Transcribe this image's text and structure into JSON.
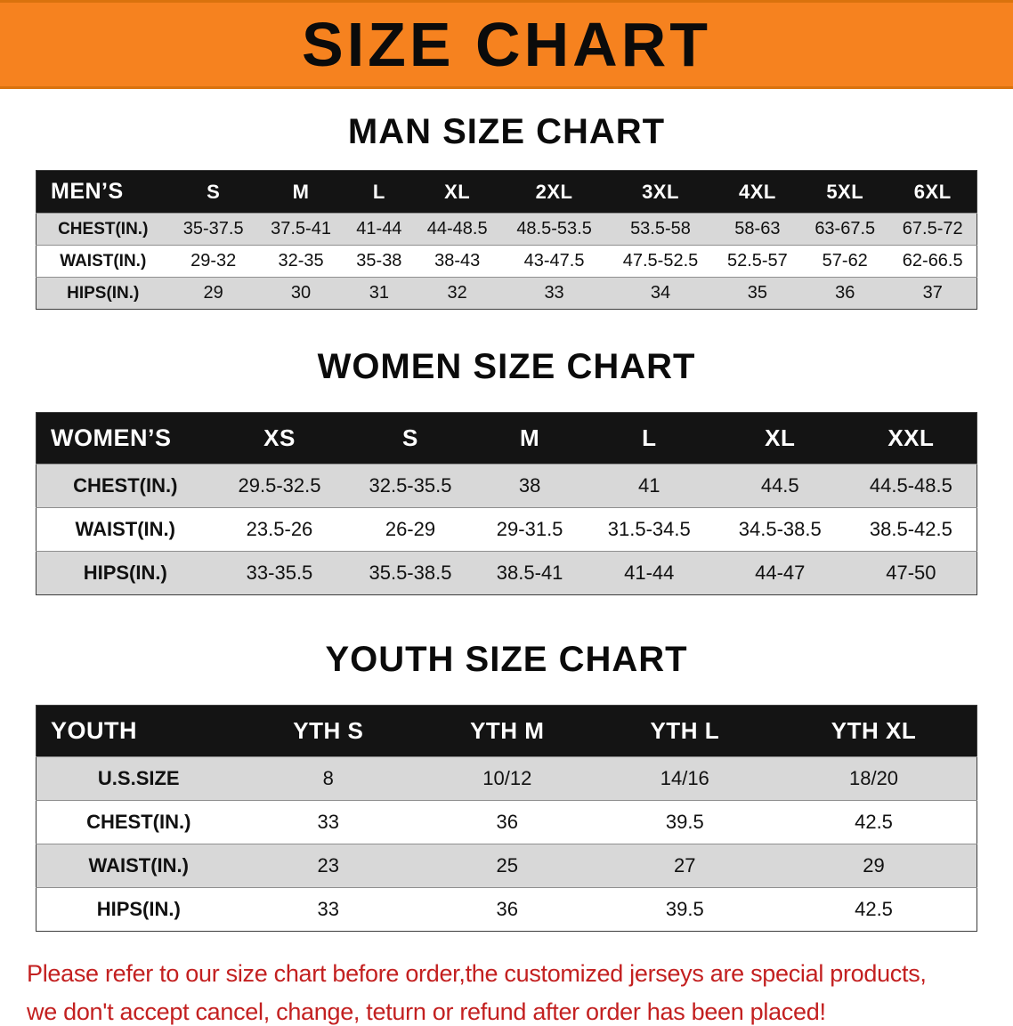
{
  "banner": {
    "title": "SIZE CHART"
  },
  "chart_data": [
    {
      "type": "table",
      "title": "MAN SIZE CHART",
      "columns": [
        "MEN’S",
        "S",
        "M",
        "L",
        "XL",
        "2XL",
        "3XL",
        "4XL",
        "5XL",
        "6XL"
      ],
      "rows": [
        [
          "CHEST(IN.)",
          "35-37.5",
          "37.5-41",
          "41-44",
          "44-48.5",
          "48.5-53.5",
          "53.5-58",
          "58-63",
          "63-67.5",
          "67.5-72"
        ],
        [
          "WAIST(IN.)",
          "29-32",
          "32-35",
          "35-38",
          "38-43",
          "43-47.5",
          "47.5-52.5",
          "52.5-57",
          "57-62",
          "62-66.5"
        ],
        [
          "HIPS(IN.)",
          "29",
          "30",
          "31",
          "32",
          "33",
          "34",
          "35",
          "36",
          "37"
        ]
      ]
    },
    {
      "type": "table",
      "title": "WOMEN SIZE CHART",
      "columns": [
        "WOMEN’S",
        "XS",
        "S",
        "M",
        "L",
        "XL",
        "XXL"
      ],
      "rows": [
        [
          "CHEST(IN.)",
          "29.5-32.5",
          "32.5-35.5",
          "38",
          "41",
          "44.5",
          "44.5-48.5"
        ],
        [
          "WAIST(IN.)",
          "23.5-26",
          "26-29",
          "29-31.5",
          "31.5-34.5",
          "34.5-38.5",
          "38.5-42.5"
        ],
        [
          "HIPS(IN.)",
          "33-35.5",
          "35.5-38.5",
          "38.5-41",
          "41-44",
          "44-47",
          "47-50"
        ]
      ]
    },
    {
      "type": "table",
      "title": "YOUTH SIZE CHART",
      "columns": [
        "YOUTH",
        "YTH S",
        "YTH M",
        "YTH L",
        "YTH XL"
      ],
      "rows": [
        [
          "U.S.SIZE",
          "8",
          "10/12",
          "14/16",
          "18/20"
        ],
        [
          "CHEST(IN.)",
          "33",
          "36",
          "39.5",
          "42.5"
        ],
        [
          "WAIST(IN.)",
          "23",
          "25",
          "27",
          "29"
        ],
        [
          "HIPS(IN.)",
          "33",
          "36",
          "39.5",
          "42.5"
        ]
      ]
    }
  ],
  "footer": {
    "lines": [
      "Please refer to our size chart before order,the customized jerseys are special products,",
      "we don't accept cancel, change, teturn or refund after order has been placed!"
    ]
  },
  "colors": {
    "banner_bg": "#F6821F",
    "header_row_bg": "#141414",
    "header_row_text": "#FFFFFF",
    "alt_row_bg": "#D8D8D8",
    "footer_text": "#C32020"
  }
}
